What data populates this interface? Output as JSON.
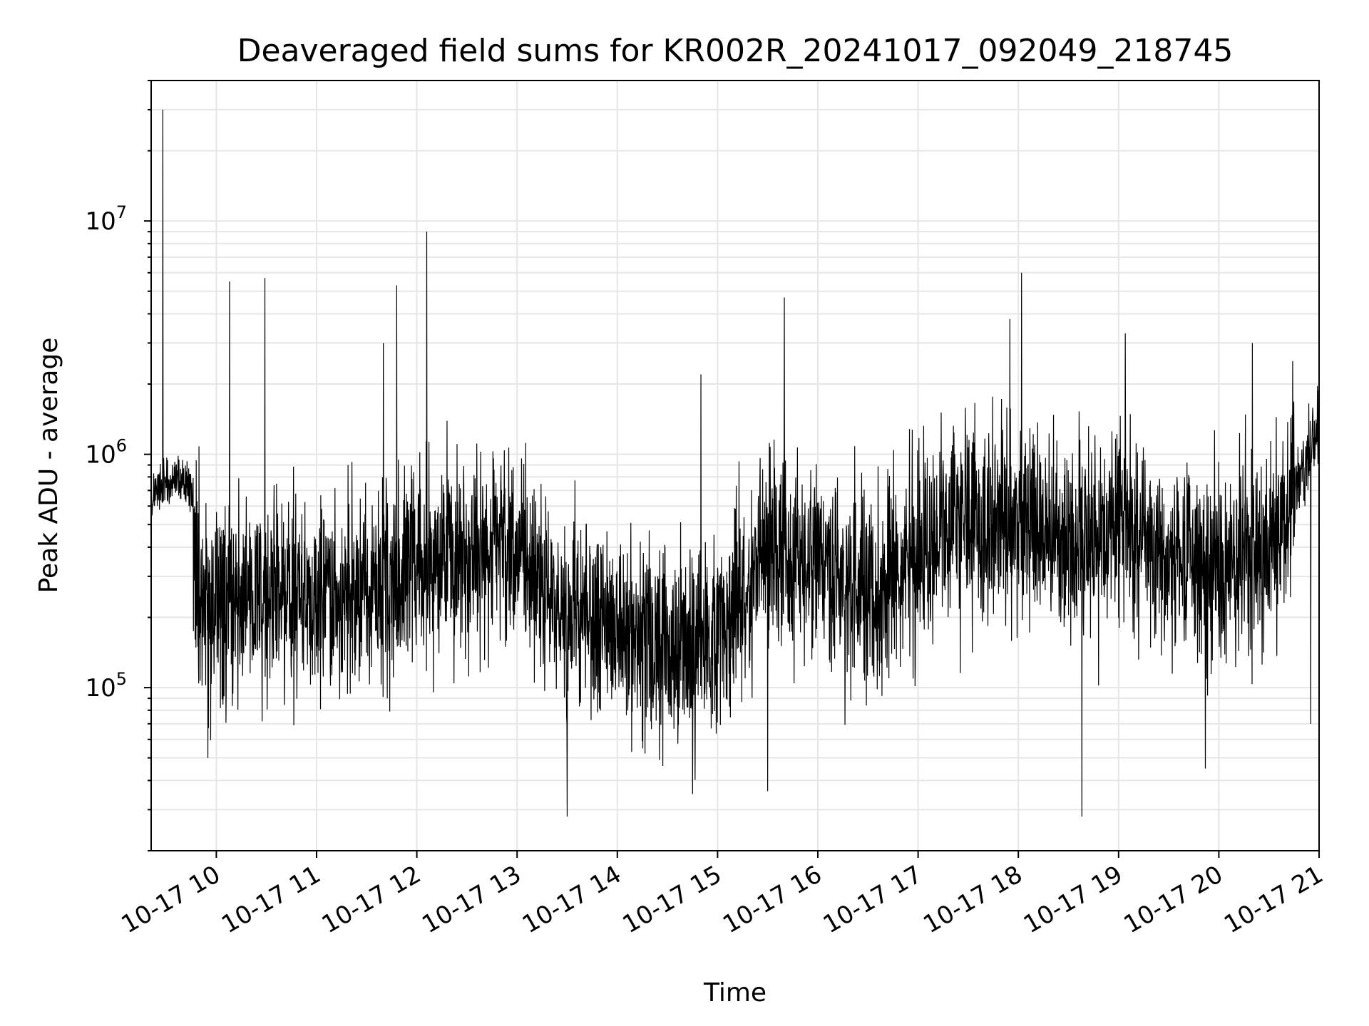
{
  "chart_data": {
    "type": "line",
    "title": "Deaveraged field sums for KR002R_20241017_092049_218745",
    "xlabel": "Time",
    "ylabel": "Peak ADU - average",
    "x_scale": "time",
    "y_scale": "log",
    "xlim": [
      "2024-10-17 09:21",
      "2024-10-17 21:00"
    ],
    "ylim": [
      20000,
      40000000
    ],
    "grid": true,
    "line_color": "#000000",
    "x_tick_labels": [
      "10-17 10",
      "10-17 11",
      "10-17 12",
      "10-17 13",
      "10-17 14",
      "10-17 15",
      "10-17 16",
      "10-17 17",
      "10-17 18",
      "10-17 19",
      "10-17 20",
      "10-17 21"
    ],
    "y_ticks": [
      {
        "value": 100000,
        "base": "10",
        "exp": "5"
      },
      {
        "value": 1000000,
        "base": "10",
        "exp": "6"
      },
      {
        "value": 10000000,
        "base": "10",
        "exp": "7"
      }
    ],
    "series": [
      {
        "x": [
          "2024-10-17 09:21",
          "2024-10-17 09:30",
          "2024-10-17 09:40",
          "2024-10-17 09:45",
          "2024-10-17 09:50",
          "2024-10-17 10:00",
          "2024-10-17 10:30",
          "2024-10-17 11:00",
          "2024-10-17 11:30",
          "2024-10-17 12:00",
          "2024-10-17 12:30",
          "2024-10-17 13:00",
          "2024-10-17 13:30",
          "2024-10-17 14:00",
          "2024-10-17 14:30",
          "2024-10-17 15:00",
          "2024-10-17 15:30",
          "2024-10-17 16:00",
          "2024-10-17 16:30",
          "2024-10-17 17:00",
          "2024-10-17 17:30",
          "2024-10-17 18:00",
          "2024-10-17 18:30",
          "2024-10-17 19:00",
          "2024-10-17 19:30",
          "2024-10-17 20:00",
          "2024-10-17 20:30",
          "2024-10-17 21:00"
        ],
        "y": [
          650000,
          750000,
          800000,
          700000,
          220000,
          250000,
          240000,
          250000,
          260000,
          320000,
          400000,
          380000,
          200000,
          180000,
          150000,
          160000,
          400000,
          350000,
          230000,
          400000,
          480000,
          520000,
          450000,
          500000,
          350000,
          330000,
          380000,
          1300000
        ]
      }
    ],
    "peaks": [
      {
        "x": "2024-10-17 09:28",
        "y": 30000000
      },
      {
        "x": "2024-10-17 10:08",
        "y": 5500000
      },
      {
        "x": "2024-10-17 10:29",
        "y": 5700000
      },
      {
        "x": "2024-10-17 11:40",
        "y": 3000000
      },
      {
        "x": "2024-10-17 11:48",
        "y": 5300000
      },
      {
        "x": "2024-10-17 12:06",
        "y": 9000000
      },
      {
        "x": "2024-10-17 14:50",
        "y": 2200000
      },
      {
        "x": "2024-10-17 15:40",
        "y": 4700000
      },
      {
        "x": "2024-10-17 17:55",
        "y": 3800000
      },
      {
        "x": "2024-10-17 18:02",
        "y": 6000000
      },
      {
        "x": "2024-10-17 19:04",
        "y": 3300000
      },
      {
        "x": "2024-10-17 20:20",
        "y": 3000000
      }
    ],
    "dips": [
      {
        "x": "2024-10-17 09:55",
        "y": 50000
      },
      {
        "x": "2024-10-17 13:30",
        "y": 28000
      },
      {
        "x": "2024-10-17 14:45",
        "y": 35000
      },
      {
        "x": "2024-10-17 15:30",
        "y": 36000
      },
      {
        "x": "2024-10-17 18:38",
        "y": 28000
      },
      {
        "x": "2024-10-17 19:52",
        "y": 45000
      },
      {
        "x": "2024-10-17 20:55",
        "y": 70000
      }
    ]
  }
}
